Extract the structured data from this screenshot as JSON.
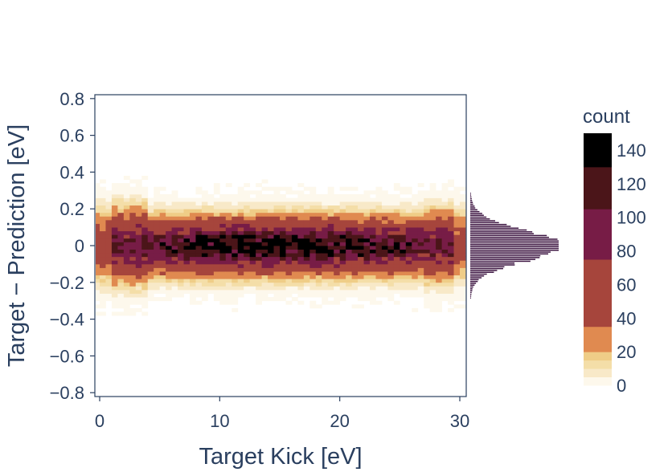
{
  "chart_data": {
    "type": "heatmap",
    "xlabel": "Target Kick [eV]",
    "ylabel": "Target − Prediction [eV]",
    "xlim": [
      -0.5,
      30.5
    ],
    "ylim": [
      -0.82,
      0.82
    ],
    "x_ticks": [
      0,
      10,
      20,
      30
    ],
    "x_tick_labels": [
      "0",
      "10",
      "20",
      "30"
    ],
    "y_ticks": [
      0.8,
      0.6,
      0.4,
      0.2,
      0,
      -0.2,
      -0.4,
      -0.6,
      -0.8
    ],
    "y_tick_labels": [
      "0.8",
      "0.6",
      "0.4",
      "0.2",
      "0",
      "−0.2",
      "−0.4",
      "−0.6",
      "−0.8"
    ],
    "heatmap_bins": {
      "x_bin_width": 0.5,
      "y_bin_width": 0.02
    },
    "residual_distribution": {
      "center": 0.0,
      "approx_sigma_eV": 0.09
    },
    "marginal_histogram": {
      "orientation": "horizontal",
      "color": "#3b1340",
      "peak_y": 0.0,
      "sigma_y": 0.085
    },
    "colorbar": {
      "title": "count",
      "ticks": [
        0,
        20,
        40,
        60,
        80,
        100,
        120,
        140
      ],
      "tick_labels": [
        "0",
        "20",
        "40",
        "60",
        "80",
        "100",
        "120",
        "140"
      ],
      "range": [
        0,
        150
      ],
      "bands": [
        {
          "from": 0,
          "to": 5,
          "color": "#fdf8ec"
        },
        {
          "from": 5,
          "to": 10,
          "color": "#f8e9c8"
        },
        {
          "from": 10,
          "to": 15,
          "color": "#f4dea8"
        },
        {
          "from": 15,
          "to": 20,
          "color": "#efcd87"
        },
        {
          "from": 20,
          "to": 35,
          "color": "#e08a50"
        },
        {
          "from": 35,
          "to": 75,
          "color": "#a6453c"
        },
        {
          "from": 75,
          "to": 105,
          "color": "#771c46"
        },
        {
          "from": 105,
          "to": 130,
          "color": "#4b1519"
        },
        {
          "from": 130,
          "to": 150,
          "color": "#000000"
        }
      ]
    }
  }
}
